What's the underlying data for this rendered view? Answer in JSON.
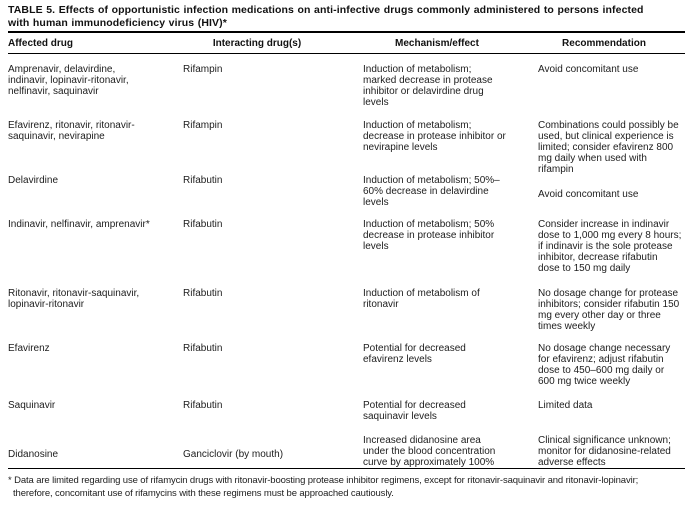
{
  "document": {
    "title": "TABLE 5. Effects of opportunistic infection medications on anti-infective drugs commonly administered to persons infected\nwith human immunodeficiency virus (HIV)*",
    "footnote": "* Data are limited regarding use of rifamycin drugs with ritonavir-boosting protease inhibitor regimens, except for ritonavir-saquinavir and ritonavir-lopinavir;\n  therefore, concomitant use of rifamycins with these regimens must be approached cautiously."
  },
  "table": {
    "headers": [
      "Affected drug",
      "Interacting drug(s)",
      "Mechanism/effect",
      "Recommendation"
    ],
    "rows": [
      {
        "affected_drug": "Amprenavir, delavirdine,\nindinavir, lopinavir-ritonavir,\nnelfinavir, saquinavir",
        "interacting_drug": "Rifampin",
        "mechanism": "Induction of metabolism;\nmarked decrease in protease\ninhibitor or delavirdine drug\nlevels",
        "recommendation": "Avoid concomitant use"
      },
      {
        "affected_drug": "Efavirenz, ritonavir, ritonavir-\nsaquinavir, nevirapine",
        "interacting_drug": "Rifampin",
        "mechanism": "Induction of metabolism;\ndecrease in protease inhibitor or\nnevirapine levels",
        "recommendation": "Combinations could possibly be\nused, but clinical experience is\nlimited; consider efavirenz 800\nmg daily when used with\nrifampin"
      },
      {
        "affected_drug": "Delavirdine",
        "interacting_drug": "Rifabutin",
        "mechanism": "Induction of metabolism; 50%–\n60% decrease in delavirdine\nlevels",
        "recommendation": "Avoid concomitant use"
      },
      {
        "affected_drug": "Indinavir, nelfinavir, amprenavir*",
        "interacting_drug": "Rifabutin",
        "mechanism": "Induction of metabolism; 50%\ndecrease in protease inhibitor\nlevels",
        "recommendation": "Consider increase in indinavir\ndose to 1,000 mg every 8 hours;\nif indinavir is the sole protease\ninhibitor, decrease rifabutin\ndose to 150 mg daily"
      },
      {
        "affected_drug": "Ritonavir, ritonavir-saquinavir,\nlopinavir-ritonavir",
        "interacting_drug": "Rifabutin",
        "mechanism": "Induction of metabolism of\nritonavir",
        "recommendation": "No dosage change for protease\ninhibitors; consider rifabutin 150\nmg every other day or three\ntimes weekly"
      },
      {
        "affected_drug": "Efavirenz",
        "interacting_drug": "Rifabutin",
        "mechanism": "Potential for decreased\nefavirenz levels",
        "recommendation": "No dosage change necessary\nfor efavirenz; adjust rifabutin\ndose to 450–600 mg daily or\n600 mg twice weekly"
      },
      {
        "affected_drug": "Saquinavir",
        "interacting_drug": "Rifabutin",
        "mechanism": "Potential for decreased\nsaquinavir levels",
        "recommendation": "Limited data"
      },
      {
        "affected_drug": "Didanosine",
        "interacting_drug": "Ganciclovir (by mouth)",
        "mechanism": "Increased didanosine area\nunder the blood concentration\ncurve by approximately 100%",
        "recommendation": "Clinical significance unknown;\nmonitor for didanosine-related\nadverse effects"
      }
    ]
  }
}
